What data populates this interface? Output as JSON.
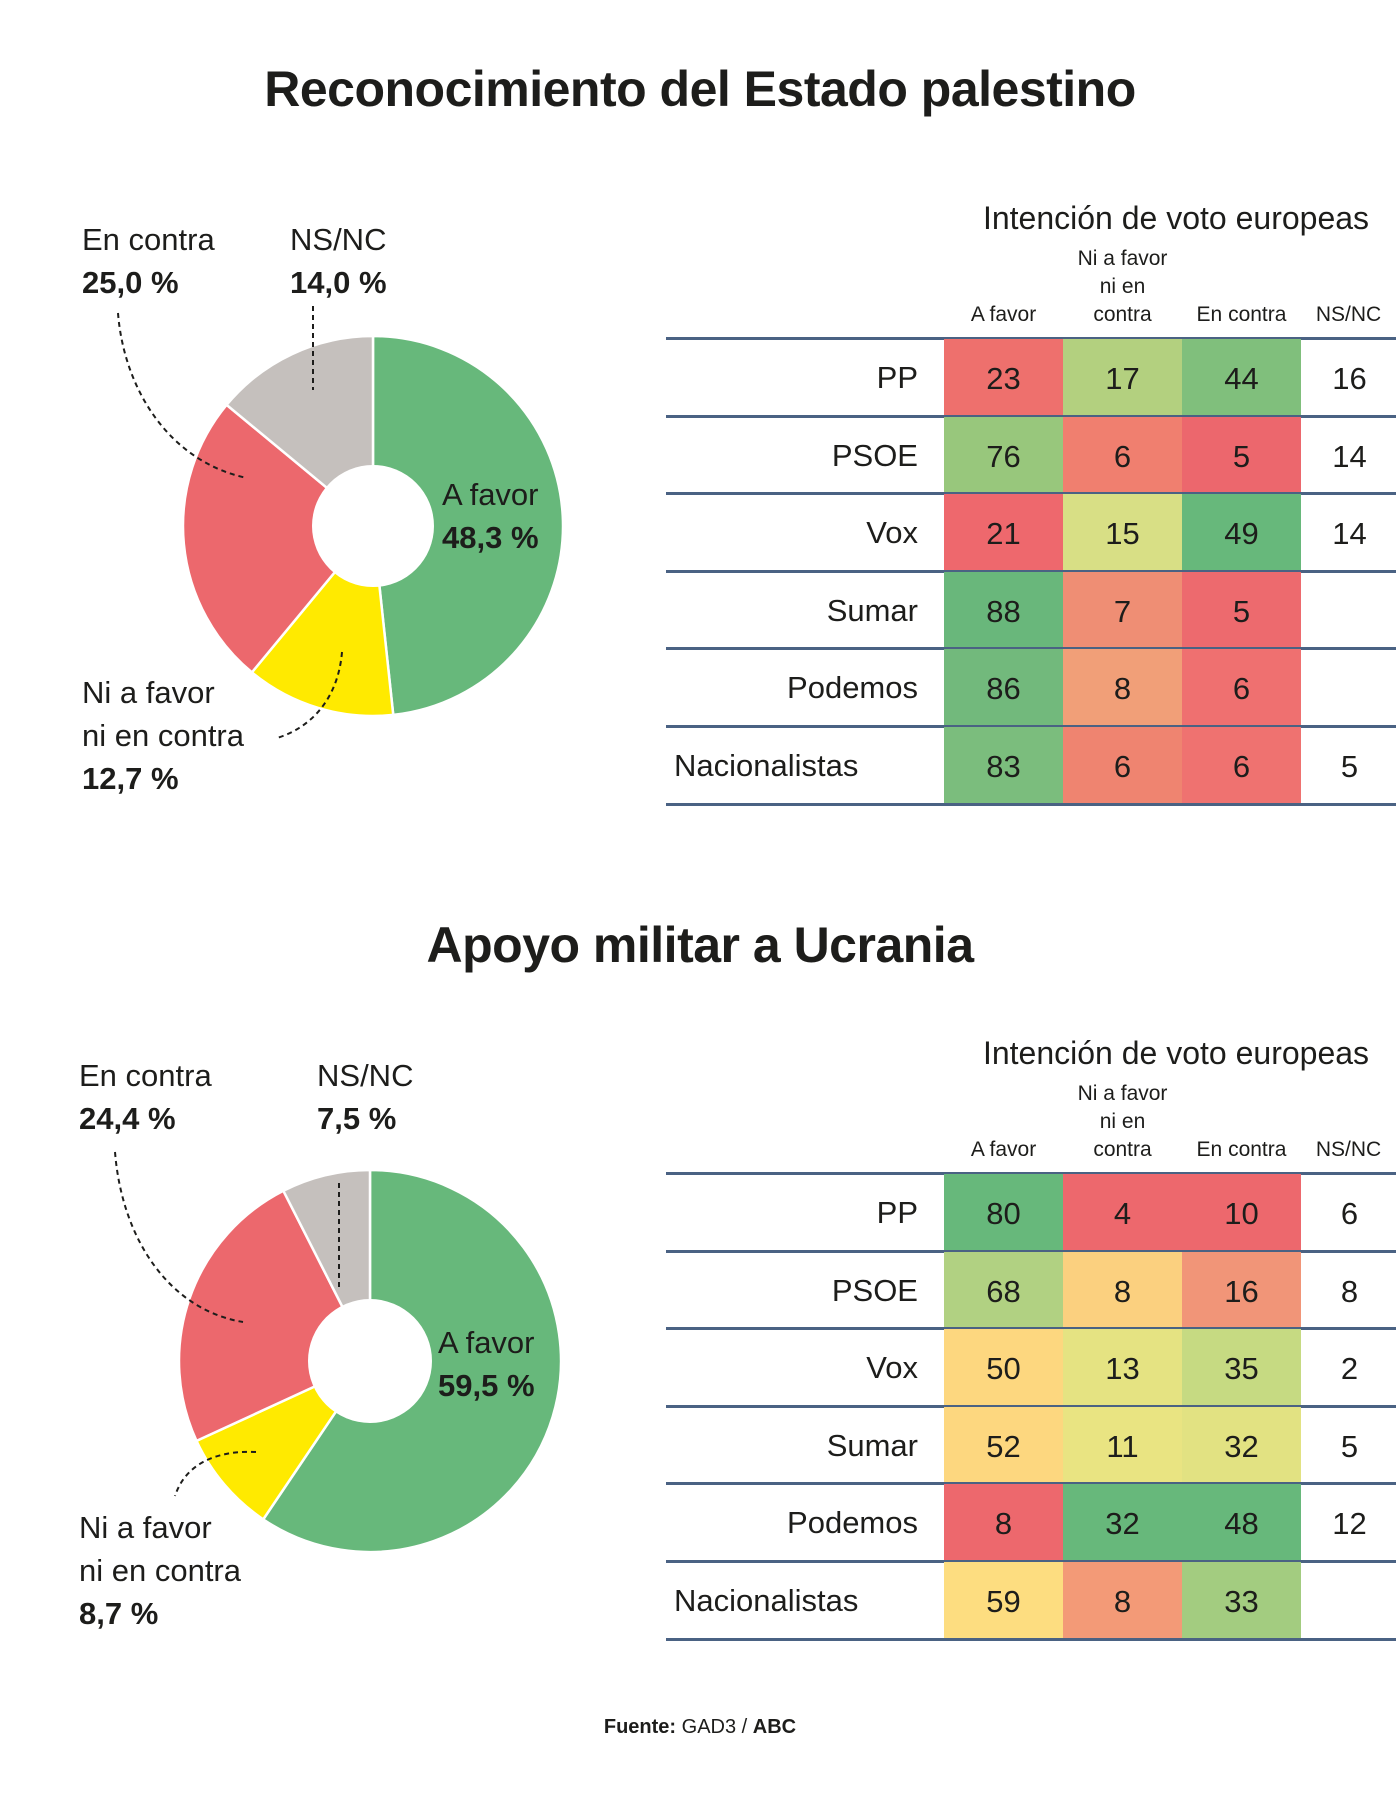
{
  "footer": {
    "source_label": "Fuente:",
    "source": "GAD3 /",
    "outlet": "ABC"
  },
  "chart_data": [
    {
      "type": "pie",
      "variant": "donut",
      "title": "Reconocimiento del Estado palestino",
      "slices": [
        {
          "label": "A favor",
          "value": 48.3,
          "display": "48,3 %",
          "color": "#67b87b"
        },
        {
          "label": "Ni a favor ni en contra",
          "value": 12.7,
          "display": "12,7 %",
          "color": "#ffea00"
        },
        {
          "label": "En contra",
          "value": 25.0,
          "display": "25,0 %",
          "color": "#ec686d"
        },
        {
          "label": "NS/NC",
          "value": 14.0,
          "display": "14,0 %",
          "color": "#c5c0bd"
        }
      ],
      "labels": {
        "a_favor": [
          "A favor"
        ],
        "ni": [
          "Ni a favor",
          "ni en contra"
        ],
        "en_contra": [
          "En contra"
        ],
        "nsnc": [
          "NS/NC"
        ]
      }
    },
    {
      "type": "table",
      "title": "Intención de voto europeas",
      "columns": [
        "A favor",
        "Ni a favor ni en contra",
        "En contra",
        "NS/NC"
      ],
      "column_header_lines": {
        "ni": [
          "Ni a favor",
          "ni en",
          "contra"
        ]
      },
      "rows": [
        {
          "party": "PP",
          "values": [
            23,
            17,
            44,
            16
          ],
          "colors": [
            "#ee706d",
            "#b3d07f",
            "#80bf7c"
          ]
        },
        {
          "party": "PSOE",
          "values": [
            76,
            6,
            5,
            14
          ],
          "colors": [
            "#98c77c",
            "#f07f6f",
            "#ec676d"
          ]
        },
        {
          "party": "Vox",
          "values": [
            21,
            15,
            49,
            14
          ],
          "colors": [
            "#ee686d",
            "#d8df85",
            "#67b87b"
          ]
        },
        {
          "party": "Sumar",
          "values": [
            88,
            7,
            5,
            null
          ],
          "colors": [
            "#69b77b",
            "#ef8e74",
            "#ed6a6e"
          ]
        },
        {
          "party": "Podemos",
          "values": [
            86,
            8,
            6,
            null
          ],
          "colors": [
            "#72b97c",
            "#f19f78",
            "#ef7070"
          ]
        },
        {
          "party": "Nacionalistas",
          "values": [
            83,
            6,
            6,
            5
          ],
          "colors": [
            "#7bbd7d",
            "#ef8470",
            "#ef7270"
          ]
        }
      ]
    },
    {
      "type": "pie",
      "variant": "donut",
      "title": "Apoyo militar a Ucrania",
      "slices": [
        {
          "label": "A favor",
          "value": 59.5,
          "display": "59,5 %",
          "color": "#67b87b"
        },
        {
          "label": "Ni a favor ni en contra",
          "value": 8.7,
          "display": "8,7 %",
          "color": "#ffea00"
        },
        {
          "label": "En contra",
          "value": 24.4,
          "display": "24,4 %",
          "color": "#ec686d"
        },
        {
          "label": "NS/NC",
          "value": 7.5,
          "display": "7,5 %",
          "color": "#c5c0bd"
        }
      ],
      "labels": {
        "a_favor": [
          "A favor"
        ],
        "ni": [
          "Ni a favor",
          "ni en contra"
        ],
        "en_contra": [
          "En contra"
        ],
        "nsnc": [
          "NS/NC"
        ]
      }
    },
    {
      "type": "table",
      "title": "Intención de voto europeas",
      "columns": [
        "A favor",
        "Ni a favor ni en contra",
        "En contra",
        "NS/NC"
      ],
      "column_header_lines": {
        "ni": [
          "Ni a favor",
          "ni en",
          "contra"
        ]
      },
      "rows": [
        {
          "party": "PP",
          "values": [
            80,
            4,
            10,
            6
          ],
          "colors": [
            "#67b87b",
            "#ed686d",
            "#ed686d"
          ]
        },
        {
          "party": "PSOE",
          "values": [
            68,
            8,
            16,
            8
          ],
          "colors": [
            "#b1d182",
            "#fbd07f",
            "#f19578"
          ]
        },
        {
          "party": "Vox",
          "values": [
            50,
            13,
            35,
            2
          ],
          "colors": [
            "#fdd77f",
            "#e5e382",
            "#c6da82"
          ]
        },
        {
          "party": "Sumar",
          "values": [
            52,
            11,
            32,
            5
          ],
          "colors": [
            "#fdd77f",
            "#e9e482",
            "#e2e282"
          ]
        },
        {
          "party": "Podemos",
          "values": [
            8,
            32,
            48,
            12
          ],
          "colors": [
            "#ed686d",
            "#67b87b",
            "#67b87b"
          ]
        },
        {
          "party": "Nacionalistas",
          "values": [
            59,
            8,
            33,
            null
          ],
          "colors": [
            "#fddd80",
            "#f39a77",
            "#a3cc80"
          ]
        }
      ]
    }
  ]
}
